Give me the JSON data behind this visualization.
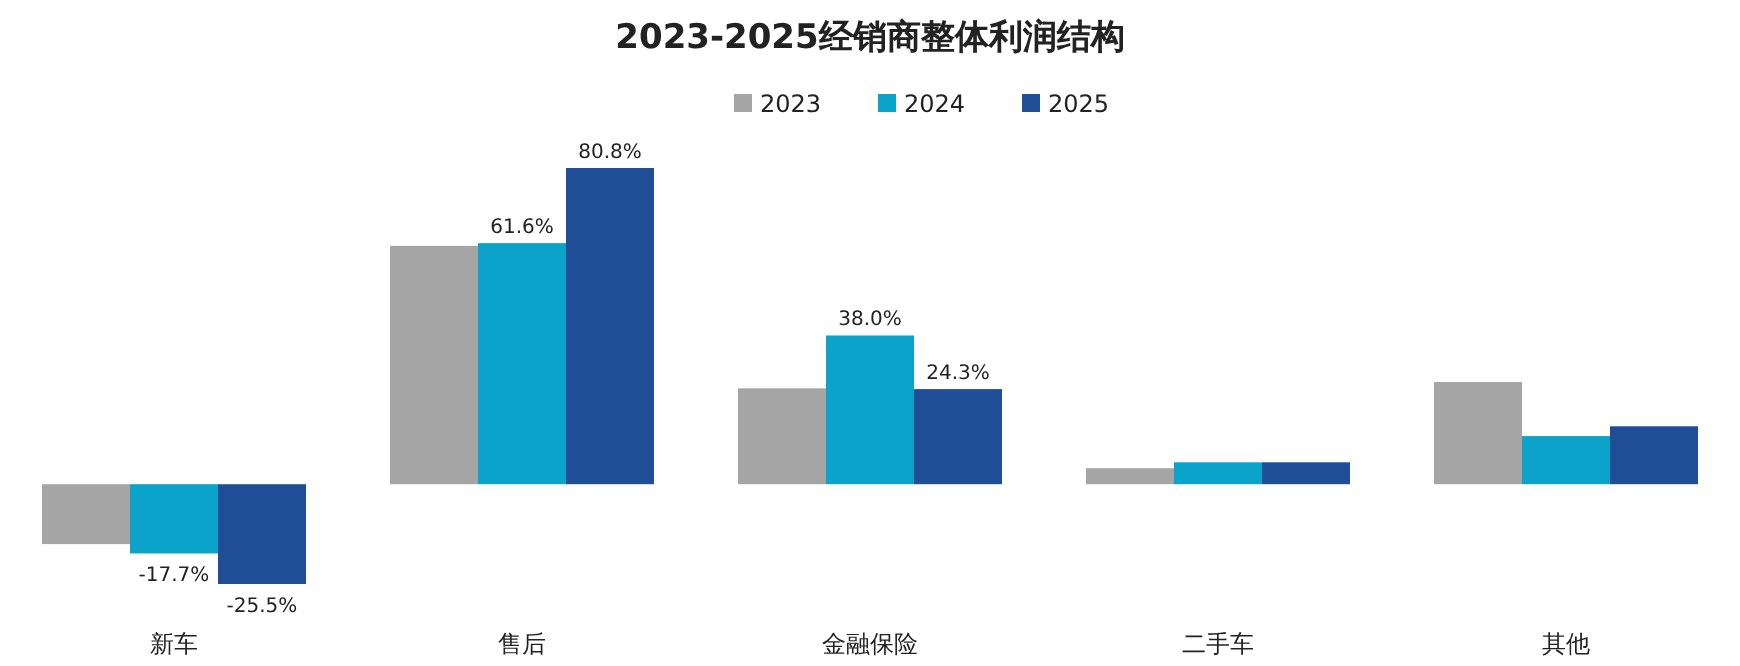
{
  "chart_data": {
    "type": "bar",
    "title": "2023-2025经销商整体利润结构",
    "categories": [
      "新车",
      "售后",
      "金融保险",
      "二手车",
      "其他"
    ],
    "legend": "top",
    "series": [
      {
        "name": "2023",
        "color": "#a5a5a5",
        "values": [
          -15.3,
          60.9,
          24.5,
          4.1,
          26.1
        ],
        "value_labels": [
          null,
          null,
          null,
          null,
          null
        ]
      },
      {
        "name": "2024",
        "color": "#0ba3c9",
        "values": [
          -17.7,
          61.6,
          38.0,
          5.6,
          12.3
        ],
        "value_labels": [
          "-17.7%",
          "61.6%",
          "38.0%",
          null,
          null
        ]
      },
      {
        "name": "2025",
        "color": "#1f4e97",
        "values": [
          -25.5,
          80.8,
          24.3,
          5.6,
          14.8
        ],
        "value_labels": [
          "-25.5%",
          "80.8%",
          "24.3%",
          null,
          null
        ]
      }
    ]
  }
}
